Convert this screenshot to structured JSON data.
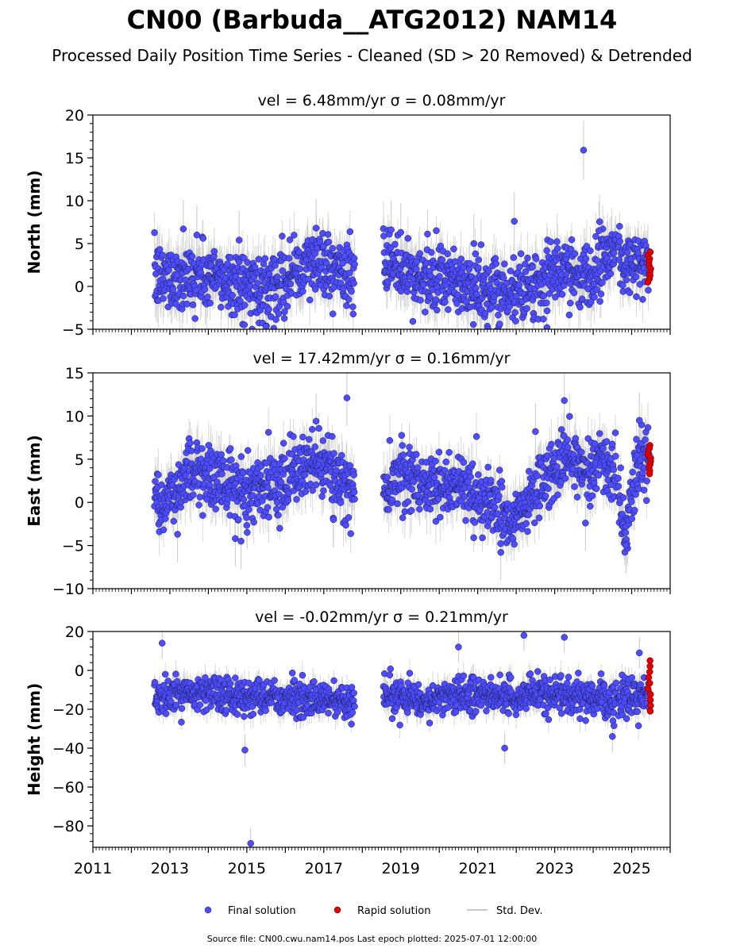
{
  "title": "CN00 (Barbuda__ATG2012) NAM14",
  "subtitle": "Processed Daily Position Time Series - Cleaned (SD > 20 Removed) & Detrended",
  "footer": "Source file: CN00.cwu.nam14.pos  Last epoch plotted: 2025-07-01 12:00:00",
  "legend": [
    {
      "label": "Final solution",
      "color": "#4d4dff"
    },
    {
      "label": "Rapid solution",
      "color": "#e00000"
    },
    {
      "label": "Std. Dev.",
      "color": "#c8c8c8"
    }
  ],
  "colors": {
    "final": "#4d4dff",
    "rapid": "#e00000",
    "stddev": "#c8c8c8",
    "edge": "#1a1a4d"
  },
  "chart_data": [
    {
      "type": "scatter",
      "panel_title": "vel = 6.48mm/yr   σ = 0.08mm/yr",
      "ylabel": "North (mm)",
      "ylim": [
        -5,
        20
      ],
      "yticks": [
        -5,
        0,
        5,
        10,
        15,
        20
      ],
      "xlim": [
        2011,
        2026
      ],
      "xticks": [
        2011,
        2013,
        2015,
        2017,
        2019,
        2021,
        2023,
        2025
      ],
      "data_segments": [
        [
          2012.6,
          2017.8
        ],
        [
          2018.55,
          2024.6
        ],
        [
          2024.65,
          2025.45
        ]
      ],
      "rapid_range": [
        2025.42,
        2025.5
      ],
      "series": [
        {
          "name": "Final solution",
          "kind": "trend",
          "x": [
            2012.6,
            2013.5,
            2014.5,
            2015.3,
            2016.0,
            2016.9,
            2017.8,
            2018.6,
            2019.5,
            2020.5,
            2021.5,
            2022.3,
            2023.0,
            2023.8,
            2024.6,
            2024.8,
            2025.4
          ],
          "y": [
            1.0,
            1.2,
            0.8,
            -0.3,
            1.0,
            3.0,
            1.0,
            2.5,
            1.0,
            0.5,
            -1.5,
            0.0,
            1.5,
            1.5,
            4.5,
            3.0,
            2.0
          ]
        },
        {
          "name": "Final solution",
          "kind": "outliers",
          "x": [
            2013.35,
            2013.7,
            2014.8,
            2015.5,
            2016.8,
            2018.75,
            2019.0,
            2020.9,
            2021.95,
            2022.8,
            2023.75,
            2024.15
          ],
          "y": [
            6.7,
            6.0,
            5.4,
            -4.7,
            6.8,
            6.6,
            6.3,
            5.0,
            7.6,
            -4.8,
            15.9,
            6.5
          ]
        },
        {
          "name": "Rapid solution",
          "kind": "rapid",
          "x": [
            2025.45,
            2025.47
          ],
          "y": [
            4.0,
            0.5
          ]
        }
      ]
    },
    {
      "type": "scatter",
      "panel_title": "vel = 17.42mm/yr   σ = 0.16mm/yr",
      "ylabel": "East (mm)",
      "ylim": [
        -10,
        15
      ],
      "yticks": [
        -10,
        -5,
        0,
        5,
        10,
        15
      ],
      "xlim": [
        2011,
        2026
      ],
      "xticks": [
        2011,
        2013,
        2015,
        2017,
        2019,
        2021,
        2023,
        2025
      ],
      "data_segments": [
        [
          2012.6,
          2017.8
        ],
        [
          2018.55,
          2024.6
        ],
        [
          2024.65,
          2025.45
        ]
      ],
      "rapid_range": [
        2025.42,
        2025.5
      ],
      "series": [
        {
          "name": "Final solution",
          "kind": "trend",
          "x": [
            2012.6,
            2013.0,
            2013.5,
            2014.0,
            2015.0,
            2016.0,
            2016.9,
            2017.7,
            2018.6,
            2019.0,
            2020.0,
            2020.5,
            2021.5,
            2022.0,
            2022.5,
            2023.3,
            2023.8,
            2024.2,
            2024.6,
            2024.75,
            2024.85,
            2025.1,
            2025.4
          ],
          "y": [
            1.0,
            0.0,
            4.0,
            3.0,
            1.5,
            3.0,
            4.5,
            1.0,
            2.0,
            3.5,
            1.5,
            2.5,
            -1.0,
            -2.5,
            1.5,
            5.0,
            4.0,
            5.0,
            3.0,
            -2.5,
            -4.0,
            4.0,
            5.5
          ]
        },
        {
          "name": "Final solution",
          "kind": "outliers",
          "x": [
            2013.2,
            2014.7,
            2014.85,
            2016.8,
            2017.6,
            2017.25,
            2021.6,
            2022.5,
            2023.25,
            2023.8,
            2024.85,
            2025.2
          ],
          "y": [
            -3.7,
            -4.2,
            -4.5,
            9.4,
            12.1,
            -2.0,
            -5.8,
            8.2,
            11.8,
            -2.4,
            -5.0,
            9.5
          ]
        },
        {
          "name": "Rapid solution",
          "kind": "rapid",
          "x": [
            2025.45,
            2025.47
          ],
          "y": [
            6.6,
            3.3
          ]
        }
      ]
    },
    {
      "type": "scatter",
      "panel_title": "vel = -0.02mm/yr   σ = 0.21mm/yr",
      "ylabel": "Height (mm)",
      "ylim": [
        -91,
        20
      ],
      "yticks": [
        -80,
        -60,
        -40,
        -20,
        0,
        20
      ],
      "xlim": [
        2011,
        2026
      ],
      "xticks": [
        2011,
        2013,
        2015,
        2017,
        2019,
        2021,
        2023,
        2025
      ],
      "data_segments": [
        [
          2012.6,
          2017.8
        ],
        [
          2018.55,
          2024.6
        ],
        [
          2024.65,
          2025.45
        ]
      ],
      "rapid_range": [
        2025.42,
        2025.5
      ],
      "series": [
        {
          "name": "Final solution",
          "kind": "trend",
          "x": [
            2012.6,
            2014.0,
            2015.5,
            2017.0,
            2017.8,
            2018.6,
            2019.5,
            2020.5,
            2021.5,
            2022.5,
            2023.5,
            2024.6,
            2024.8,
            2025.4
          ],
          "y": [
            -13,
            -12,
            -14,
            -15,
            -17,
            -13,
            -16,
            -12,
            -14,
            -12,
            -14,
            -15,
            -13,
            -14
          ]
        },
        {
          "name": "Final solution",
          "kind": "outliers",
          "x": [
            2012.8,
            2014.95,
            2015.1,
            2020.5,
            2021.7,
            2022.2,
            2023.25,
            2024.5,
            2025.2
          ],
          "y": [
            14,
            -41,
            -89,
            12,
            -40,
            18,
            17,
            -34,
            9
          ]
        },
        {
          "name": "Rapid solution",
          "kind": "rapid",
          "x": [
            2025.45,
            2025.47
          ],
          "y": [
            5,
            -21
          ]
        }
      ]
    }
  ]
}
